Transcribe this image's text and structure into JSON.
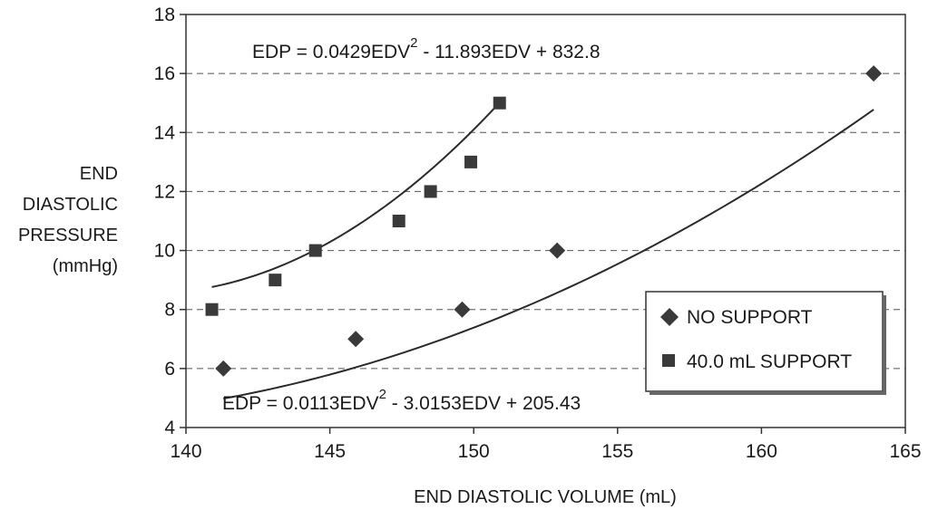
{
  "chart_data": {
    "type": "scatter",
    "title": "",
    "xlabel": "END DIASTOLIC VOLUME (mL)",
    "ylabel_lines": [
      "END",
      "DIASTOLIC",
      "PRESSURE",
      "(mmHg)"
    ],
    "xlim": [
      140,
      165
    ],
    "ylim": [
      4,
      18
    ],
    "x_ticks": [
      140,
      145,
      150,
      155,
      160,
      165
    ],
    "y_ticks": [
      4,
      6,
      8,
      10,
      12,
      14,
      16,
      18
    ],
    "grid": "horizontal-dashed",
    "legend_position": "bottom-right",
    "series": [
      {
        "name": "NO SUPPORT",
        "marker": "diamond",
        "color": "#3a3a3a",
        "points": [
          [
            141.3,
            6
          ],
          [
            145.9,
            7
          ],
          [
            149.6,
            8
          ],
          [
            152.9,
            10
          ],
          [
            163.9,
            16
          ]
        ],
        "fit": {
          "a": 0.0113,
          "b": -3.0153,
          "c": 205.43,
          "x_range": [
            141.3,
            163.9
          ]
        },
        "equation": {
          "prefix": "EDP = 0.0113EDV",
          "power": "2",
          "suffix": " - 3.0153EDV + 205.43"
        }
      },
      {
        "name": "40.0 mL SUPPORT",
        "marker": "square",
        "color": "#3a3a3a",
        "points": [
          [
            140.9,
            8
          ],
          [
            143.1,
            9
          ],
          [
            144.5,
            10
          ],
          [
            147.4,
            11
          ],
          [
            148.5,
            12
          ],
          [
            149.9,
            13
          ],
          [
            150.9,
            15
          ]
        ],
        "fit": {
          "a": 0.0429,
          "b": -11.893,
          "c": 832.8,
          "x_range": [
            140.9,
            150.9
          ]
        },
        "equation": {
          "prefix": "EDP = 0.0429EDV",
          "power": "2",
          "suffix": " - 11.893EDV + 832.8"
        }
      }
    ]
  }
}
